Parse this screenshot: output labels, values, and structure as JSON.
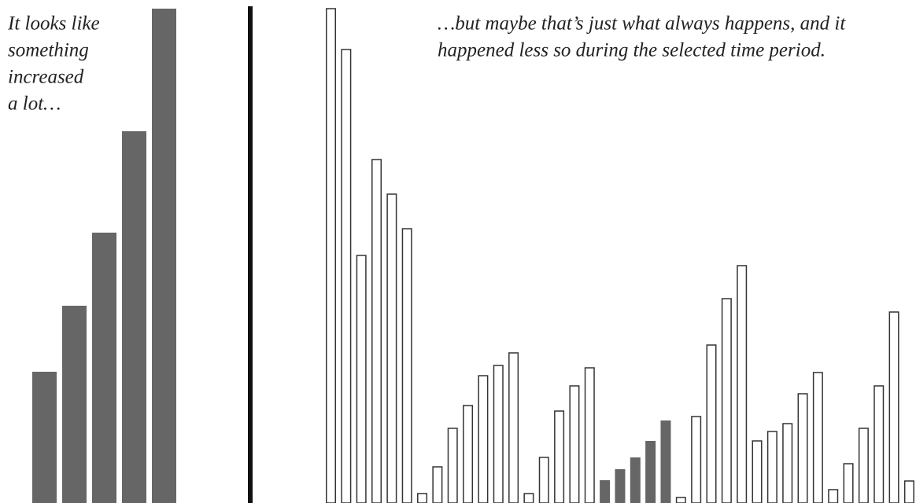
{
  "chart_data": [
    {
      "type": "bar",
      "annotation": [
        "It looks like",
        "something",
        "increased",
        "a lot…"
      ],
      "values": [
        167,
        251,
        344,
        473,
        629
      ],
      "color": "#666666",
      "ylim": [
        0,
        630
      ]
    },
    {
      "type": "bar",
      "annotation": [
        "…but maybe that’s just what always happens, and it",
        "happened less so during the selected time period."
      ],
      "values": [
        629,
        577,
        315,
        437,
        393,
        349,
        12,
        46,
        95,
        124,
        162,
        175,
        191,
        12,
        58,
        117,
        149,
        172,
        29,
        43,
        58,
        79,
        105,
        7,
        110,
        201,
        260,
        302,
        79,
        91,
        101,
        139,
        166,
        17,
        50,
        95,
        149,
        243,
        28
      ],
      "color": "#ffffff",
      "edge_color": "#333333",
      "highlight_indices": [
        18,
        19,
        20,
        21,
        22
      ],
      "highlight_color": "#666666",
      "ylim": [
        0,
        630
      ]
    }
  ]
}
